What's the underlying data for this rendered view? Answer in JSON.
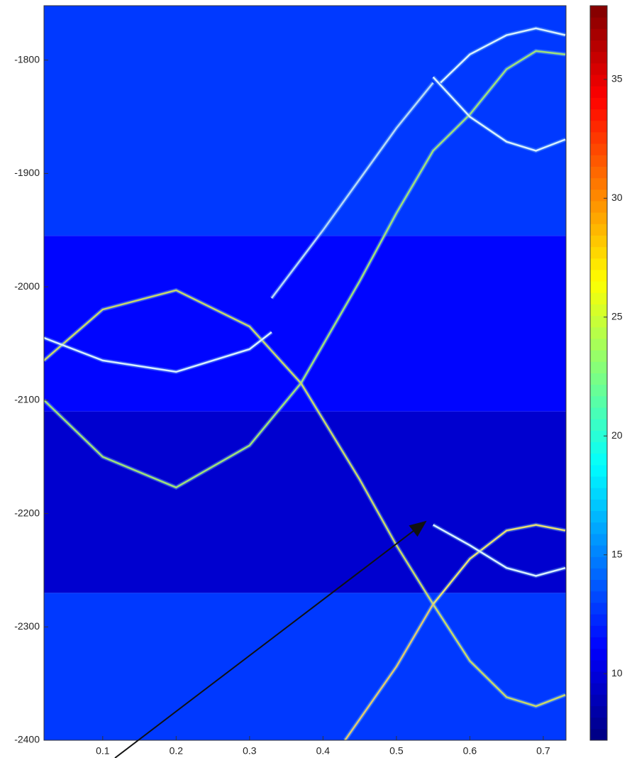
{
  "chart_data": {
    "type": "heatmap",
    "xlim": [
      0.02,
      0.731
    ],
    "ylim": [
      -2400,
      -1752
    ],
    "xticks": [
      0.1,
      0.2,
      0.3,
      0.4,
      0.5,
      0.6,
      0.7
    ],
    "yticks": [
      -1800,
      -1900,
      -2000,
      -2100,
      -2200,
      -2300,
      -2400
    ],
    "clim": [
      7.2,
      38.1
    ],
    "cticks": [
      10,
      15,
      20,
      25,
      30,
      35
    ],
    "bands": [
      {
        "from": -1955,
        "to": -1752,
        "value": 12.8
      },
      {
        "from": -2110,
        "to": -1955,
        "value": 11.2
      },
      {
        "from": -2270,
        "to": -2110,
        "value": 9.6
      },
      {
        "from": -2400,
        "to": -2270,
        "value": 12.8
      }
    ],
    "series": [
      {
        "color": "#9fe07a",
        "x": [
          0.02,
          0.1,
          0.2,
          0.3,
          0.37,
          0.45,
          0.5,
          0.55,
          0.6,
          0.65,
          0.69,
          0.73
        ],
        "values": [
          -2100,
          -2150,
          -2177,
          -2140,
          -2085,
          -1995,
          -1935,
          -1880,
          -1848,
          -1808,
          -1792,
          -1795
        ]
      },
      {
        "color": "#c8d86a",
        "x": [
          0.02,
          0.1,
          0.2,
          0.3,
          0.37,
          0.45,
          0.5,
          0.55,
          0.6,
          0.65,
          0.69,
          0.73
        ],
        "values": [
          -2065,
          -2020,
          -2003,
          -2035,
          -2085,
          -2170,
          -2228,
          -2280,
          -2330,
          -2362,
          -2370,
          -2360
        ]
      },
      {
        "color": "#d9f0ff",
        "x": [
          0.02,
          0.1,
          0.2,
          0.3,
          0.33
        ],
        "values": [
          -2045,
          -2065,
          -2075,
          -2055,
          -2040
        ]
      },
      {
        "color": "#d9f0ff",
        "x": [
          0.55,
          0.6,
          0.65,
          0.69,
          0.73
        ],
        "values": [
          -1815,
          -1850,
          -1872,
          -1880,
          -1870
        ]
      },
      {
        "color": "#d9f0ff",
        "x": [
          0.56,
          0.6,
          0.65,
          0.69,
          0.73
        ],
        "values": [
          -1820,
          -1795,
          -1778,
          -1772,
          -1778
        ]
      },
      {
        "color": "#e8e070",
        "x": [
          0.55,
          0.6,
          0.65,
          0.69,
          0.73
        ],
        "values": [
          -2280,
          -2240,
          -2215,
          -2210,
          -2215
        ]
      },
      {
        "color": "#d9f0ff",
        "x": [
          0.55,
          0.6,
          0.65,
          0.69,
          0.73
        ],
        "values": [
          -2210,
          -2228,
          -2248,
          -2255,
          -2248
        ]
      },
      {
        "color": "#b8d8f8",
        "x": [
          0.33,
          0.4,
          0.5,
          0.55
        ],
        "values": [
          -2010,
          -1950,
          -1860,
          -1820
        ]
      },
      {
        "color": "#e0c870",
        "x": [
          0.43,
          0.5,
          0.55
        ],
        "values": [
          -2400,
          -2335,
          -2280
        ]
      }
    ]
  }
}
